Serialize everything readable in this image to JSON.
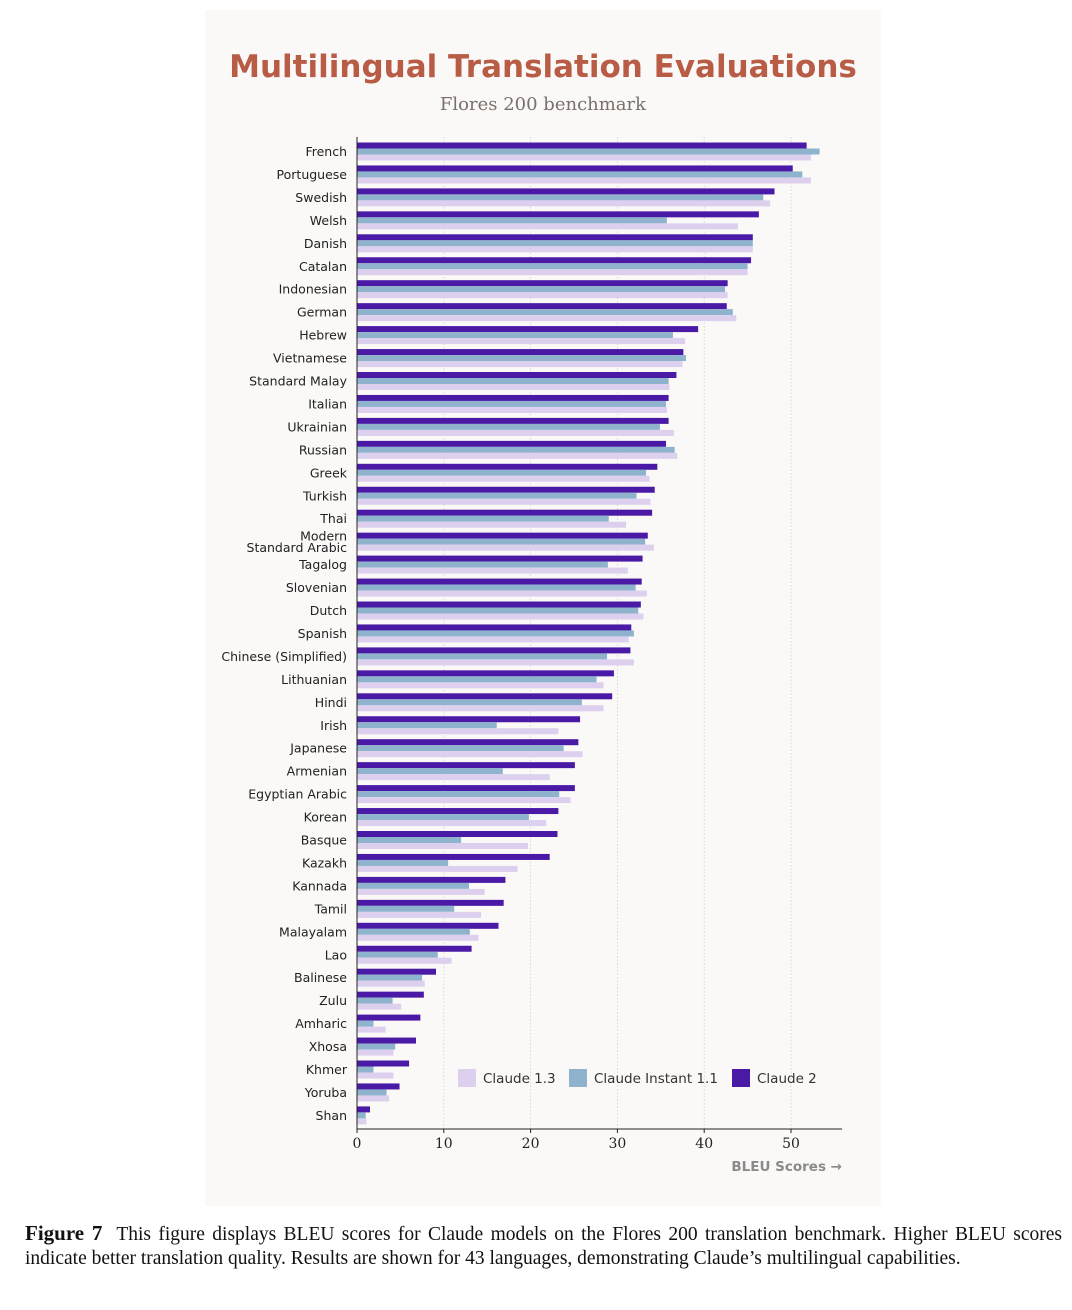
{
  "chart_data": {
    "type": "bar",
    "orientation": "horizontal",
    "title": "Multilingual Translation Evaluations",
    "subtitle": "Flores 200 benchmark",
    "xlabel": "BLEU Scores →",
    "ylabel": "",
    "xlim": [
      0,
      56
    ],
    "xticks": [
      0,
      10,
      20,
      30,
      40,
      50
    ],
    "grid": true,
    "legend_position": "bottom-right",
    "categories": [
      "French",
      "Portuguese",
      "Swedish",
      "Welsh",
      "Danish",
      "Catalan",
      "Indonesian",
      "German",
      "Hebrew",
      "Vietnamese",
      "Standard Malay",
      "Italian",
      "Ukrainian",
      "Russian",
      "Greek",
      "Turkish",
      "Thai",
      "Modern Standard Arabic",
      "Tagalog",
      "Slovenian",
      "Dutch",
      "Spanish",
      "Chinese (Simplified)",
      "Lithuanian",
      "Hindi",
      "Irish",
      "Japanese",
      "Armenian",
      "Egyptian Arabic",
      "Korean",
      "Basque",
      "Kazakh",
      "Kannada",
      "Tamil",
      "Malayalam",
      "Lao",
      "Balinese",
      "Zulu",
      "Amharic",
      "Xhosa",
      "Khmer",
      "Yoruba",
      "Shan"
    ],
    "series": [
      {
        "name": "Claude 2",
        "color": "#4a1aa6",
        "values": [
          51.8,
          50.2,
          48.1,
          46.3,
          45.6,
          45.4,
          42.7,
          42.6,
          39.3,
          37.6,
          36.8,
          35.9,
          35.9,
          35.6,
          34.6,
          34.3,
          34.0,
          33.5,
          32.9,
          32.8,
          32.7,
          31.6,
          31.5,
          29.6,
          29.4,
          25.7,
          25.5,
          25.1,
          25.1,
          23.2,
          23.1,
          22.2,
          17.1,
          16.9,
          16.3,
          13.2,
          9.1,
          7.7,
          7.3,
          6.8,
          6.0,
          4.9,
          1.5
        ]
      },
      {
        "name": "Claude Instant 1.1",
        "color": "#8fb3cc",
        "values": [
          53.3,
          51.3,
          46.8,
          35.7,
          45.6,
          45.0,
          42.4,
          43.3,
          36.4,
          37.9,
          35.9,
          35.6,
          34.9,
          36.6,
          33.3,
          32.2,
          29.0,
          33.2,
          28.9,
          32.1,
          32.4,
          31.9,
          28.8,
          27.6,
          25.9,
          16.1,
          23.8,
          16.8,
          23.3,
          19.8,
          12.0,
          10.5,
          12.9,
          11.2,
          13.0,
          9.3,
          7.5,
          4.1,
          1.9,
          4.4,
          1.9,
          3.4,
          1.0
        ]
      },
      {
        "name": "Claude 1.3",
        "color": "#dcd0ee",
        "values": [
          52.3,
          52.3,
          47.6,
          43.9,
          45.6,
          45.0,
          42.7,
          43.7,
          37.8,
          37.5,
          36.0,
          35.7,
          36.5,
          36.9,
          33.7,
          33.8,
          31.0,
          34.2,
          31.2,
          33.4,
          33.0,
          31.3,
          31.9,
          28.4,
          28.4,
          23.2,
          26.0,
          22.2,
          24.6,
          21.8,
          19.7,
          18.5,
          14.7,
          14.3,
          14.0,
          10.9,
          7.8,
          5.1,
          3.3,
          4.2,
          4.2,
          3.7,
          1.1
        ]
      }
    ],
    "legend_order": [
      "Claude 1.3",
      "Claude Instant 1.1",
      "Claude 2"
    ]
  },
  "caption": {
    "label": "Figure 7",
    "text": "This figure displays BLEU scores for Claude models on the Flores 200 translation benchmark. Higher BLEU scores indicate better translation quality. Results are shown for 43 languages, demonstrating Claude’s multilingual capabilities."
  },
  "colors": {
    "title": "#b85c45",
    "subtitle": "#7a6f6a",
    "axis_label": "#8a8a8a",
    "panel_bg": "#faf9f7"
  }
}
